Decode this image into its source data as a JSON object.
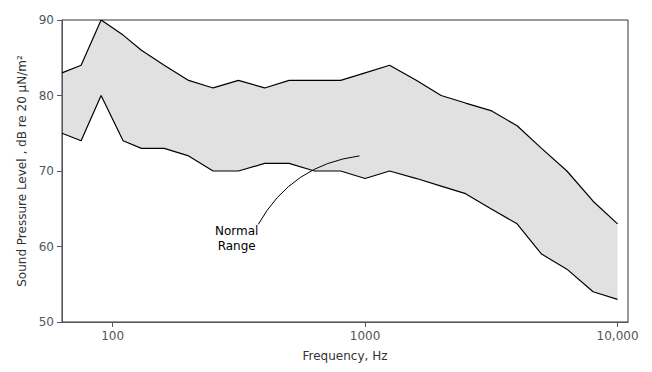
{
  "chart_data": {
    "type": "band",
    "xlabel": "Frequency, Hz",
    "ylabel": "Sound Pressure Level , dB re 20 μN/m²",
    "log": "x",
    "xlim": [
      63,
      11000
    ],
    "xticks": [
      100,
      1000,
      {
        "value": 10000,
        "label": "10,000"
      }
    ],
    "ylim": [
      50,
      90
    ],
    "yticks": [
      50,
      60,
      70,
      80,
      90
    ],
    "grid": false,
    "x": [
      63,
      75,
      90,
      110,
      130,
      160,
      200,
      250,
      315,
      400,
      500,
      630,
      800,
      1000,
      1250,
      1600,
      2000,
      2500,
      3150,
      4000,
      5000,
      6300,
      8000,
      10000
    ],
    "series": [
      {
        "color": "black",
        "values": [
          83,
          84,
          90,
          88,
          86,
          84,
          82,
          81,
          82,
          81,
          82,
          82,
          82,
          83,
          84,
          82,
          80,
          79,
          78,
          76,
          73,
          70,
          66,
          63
        ]
      },
      {
        "color": "black",
        "values": [
          75,
          74,
          80,
          74,
          73,
          73,
          72,
          70,
          70,
          71,
          71,
          70,
          70,
          69,
          70,
          69,
          68,
          67,
          65,
          63,
          59,
          57,
          54,
          53
        ]
      }
    ],
    "annotations": [
      {
        "text": "Normal\nRange",
        "xy": [
          950,
          72
        ],
        "xytext": [
          310,
          61
        ]
      }
    ]
  }
}
